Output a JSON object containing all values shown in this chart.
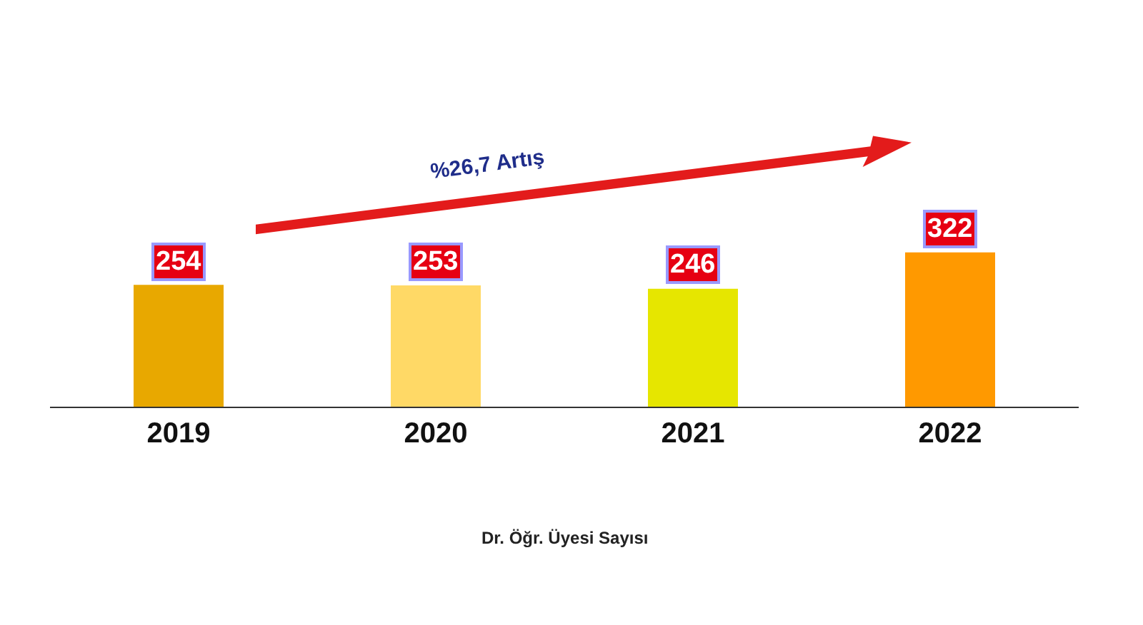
{
  "chart_data": {
    "type": "bar",
    "categories": [
      "2019",
      "2020",
      "2021",
      "2022"
    ],
    "values": [
      254,
      253,
      246,
      322
    ],
    "colors": [
      "#e8a800",
      "#ffd966",
      "#e6e600",
      "#ff9900"
    ],
    "data_labels": true,
    "xlabel": "Dr. Öğr. Üyesi Sayısı",
    "annotations": [
      "%26,7 Artış"
    ]
  }
}
